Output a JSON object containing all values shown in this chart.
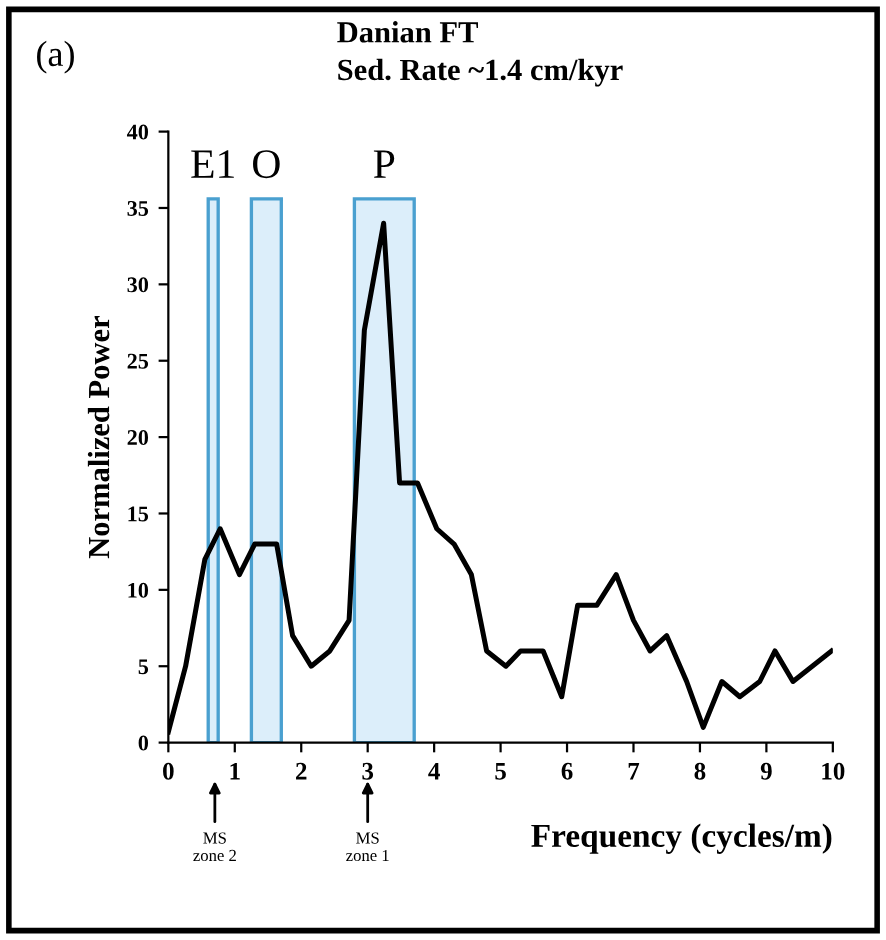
{
  "chart_data": {
    "type": "line",
    "title": "Danian FT",
    "subtitle": "Sed. Rate ~1.4 cm/kyr",
    "xlabel": "Frequency (cycles/m)",
    "ylabel": "Normalized Power",
    "annotations": [
      "(a)",
      "MS\nzone 2",
      "MS\nzone 1"
    ],
    "series": [
      {
        "color": "#000000",
        "x": [
          0,
          0.26,
          0.55,
          0.78,
          1.07,
          1.3,
          1.63,
          1.87,
          2.15,
          2.43,
          2.72,
          2.95,
          3.24,
          3.48,
          3.75,
          4.04,
          4.3,
          4.56,
          4.79,
          5.08,
          5.3,
          5.64,
          5.92,
          6.16,
          6.45,
          6.74,
          7.0,
          7.25,
          7.5,
          7.8,
          8.05,
          8.33,
          8.6,
          8.9,
          9.13,
          9.4,
          9.98
        ],
        "values": [
          0.7,
          5,
          12,
          14,
          11,
          13,
          13,
          7,
          5,
          6,
          8,
          27,
          34,
          17,
          17,
          14,
          13,
          11,
          6,
          5,
          6,
          6,
          3,
          9,
          9,
          11,
          8,
          6,
          7,
          4,
          1,
          4,
          3,
          4,
          6,
          4,
          6
        ]
      }
    ],
    "bands": [
      {
        "axis": "x",
        "from": 0.6,
        "to": 0.75,
        "label": "E1",
        "color": "#dceefa"
      },
      {
        "axis": "x",
        "from": 1.25,
        "to": 1.7,
        "label": "O",
        "color": "#dceefa"
      },
      {
        "axis": "x",
        "from": 2.8,
        "to": 3.7,
        "label": "P",
        "color": "#dceefa"
      }
    ],
    "xlim": [
      0,
      10
    ],
    "xticks": [
      0,
      1,
      2,
      3,
      4,
      5,
      6,
      7,
      8,
      9,
      10
    ],
    "ylim": [
      0,
      40
    ],
    "yticks": [
      0,
      5,
      10,
      15,
      20,
      25,
      30,
      35,
      40
    ],
    "grid": false,
    "legend": false,
    "line_style": "solid"
  }
}
